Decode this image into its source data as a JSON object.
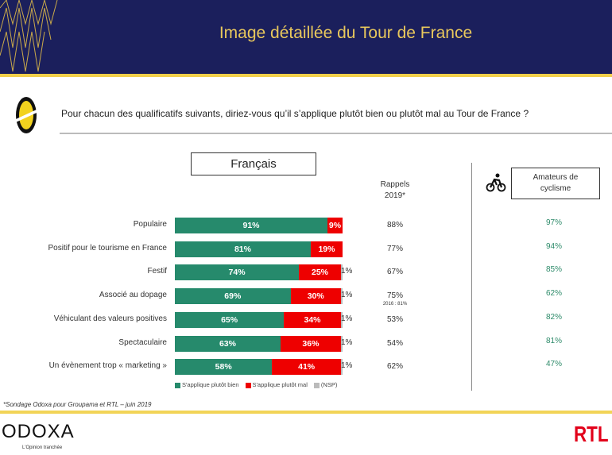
{
  "header": {
    "title": "Image détaillée du Tour de France"
  },
  "question": "Pour chacun des qualificatifs suivants, diriez-vous qu’il s’applique plutôt bien ou plutôt mal au Tour de France ?",
  "group_label": "Français",
  "rappels": {
    "line1": "Rappels",
    "line2": "2019*"
  },
  "amateurs": {
    "line1": "Amateurs de",
    "line2": "cyclisme"
  },
  "rappel_note": "2016 : 81%",
  "colors": {
    "bien": "#268a6c",
    "mal": "#ee0000",
    "nsp": "#bbbbbb",
    "navy": "#1b1f5c",
    "gold": "#f2cf4a"
  },
  "chart_data": {
    "type": "bar",
    "stacked": true,
    "categories": [
      "Populaire",
      "Positif pour le tourisme en France",
      "Festif",
      "Associé au dopage",
      "Véhiculant des valeurs positives",
      "Spectaculaire",
      "Un évènement trop « marketing »"
    ],
    "series": [
      {
        "name": "S'applique plutôt bien",
        "values": [
          91,
          81,
          74,
          69,
          65,
          63,
          58
        ],
        "labels": [
          "91%",
          "81%",
          "74%",
          "69%",
          "65%",
          "63%",
          "58%"
        ]
      },
      {
        "name": "S'applique plutôt mal",
        "values": [
          9,
          19,
          25,
          30,
          34,
          36,
          41
        ],
        "labels": [
          "9%",
          "19%",
          "25%",
          "30%",
          "34%",
          "36%",
          "41%"
        ]
      },
      {
        "name": "(NSP)",
        "values": [
          0,
          0,
          1,
          1,
          1,
          1,
          1
        ],
        "labels": [
          "",
          "",
          "1%",
          "1%",
          "1%",
          "1%",
          "1%"
        ]
      }
    ],
    "rappels_2019": [
      "88%",
      "77%",
      "67%",
      "75%",
      "53%",
      "54%",
      "62%"
    ],
    "amateurs_cyclisme": [
      "97%",
      "94%",
      "85%",
      "62%",
      "82%",
      "81%",
      "47%"
    ],
    "legend_position": "bottom"
  },
  "footnote": "*Sondage Odoxa pour Groupama et RTL – juin 2019",
  "brand": {
    "odoxa": "ODOXA",
    "tagline": "L'Opinion tranchée",
    "rtl": "RTL"
  }
}
